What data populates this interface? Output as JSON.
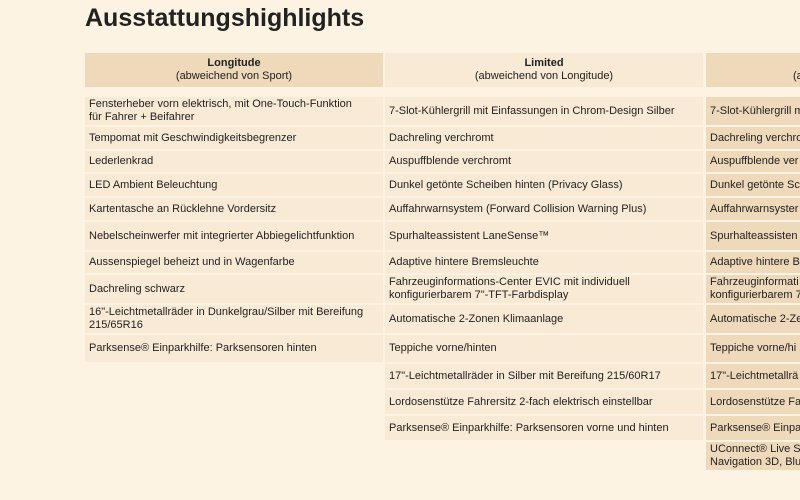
{
  "title": "Ausstattungshighlights",
  "table": {
    "columns": [
      {
        "title": "Longitude",
        "subtitle": "(abweichend von Sport)",
        "cells": [
          "Fensterheber vorn elektrisch, mit One-Touch-Funktion\nfür Fahrer + Beifahrer",
          "Tempomat mit Geschwindigkeitsbegrenzer",
          "Lederlenkrad",
          "LED Ambient Beleuchtung",
          "Kartentasche an Rücklehne Vordersitz",
          "Nebelscheinwerfer mit integrierter Abbiegelichtfunktion",
          "Aussenspiegel beheizt und in Wagenfarbe",
          "Dachreling schwarz",
          "16\"-Leichtmetallräder in Dunkelgrau/Silber mit Bereifung\n215/65R16",
          "Parksense® Einparkhilfe: Parksensoren hinten"
        ]
      },
      {
        "title": "Limited",
        "subtitle": "(abweichend von Longitude)",
        "cells": [
          "7-Slot-Kühlergrill mit Einfassungen in Chrom-Design Silber",
          "Dachreling verchromt",
          "Auspuffblende verchromt",
          "Dunkel getönte Scheiben hinten (Privacy Glass)",
          "Auffahrwarnsystem (Forward Collision Warning Plus)",
          "Spurhalteassistent LaneSense™",
          "Adaptive hintere Bremsleuchte",
          "Fahrzeuginformations-Center EVIC mit individuell\nkonfigurierbarem 7\"-TFT-Farbdisplay",
          "Automatische 2-Zonen Klimaanlage",
          "Teppiche vorne/hinten",
          "17\"-Leichtmetallräder in Silber mit Bereifung 215/60R17",
          "Lordosenstütze Fahrersitz 2-fach elektrisch einstellbar",
          "Parksense® Einparkhilfe: Parksensoren vorne und hinten"
        ]
      },
      {
        "subtitle": "(a",
        "cells": [
          "7-Slot-Kühlergrill m",
          "Dachreling verchro",
          "Auspuffblende ver",
          "Dunkel getönte Sc",
          "Auffahrwarnsyster",
          "Spurhalteassisten",
          "Adaptive hintere B",
          "Fahrzeuginformati\nkonfigurierbarem 7",
          "Automatische 2-Ze",
          "Teppiche vorne/hi",
          "17\"-Leichtmetallrä",
          "Lordosenstütze Fa",
          "Parksense® Einpar",
          "UConnect® Live S\nNavigation 3D, Blu"
        ]
      }
    ]
  }
}
